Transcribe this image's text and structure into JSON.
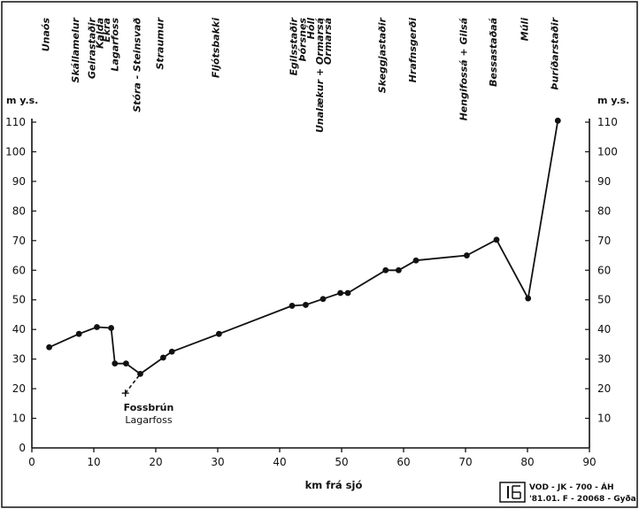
{
  "chart_data": {
    "type": "line",
    "title": "",
    "xlabel": "km frá sjó",
    "ylabel_left": "m y.s.",
    "ylabel_right": "m y.s.",
    "xlim": [
      0,
      90
    ],
    "ylim": [
      0,
      110
    ],
    "x_ticks": [
      0,
      10,
      20,
      30,
      40,
      50,
      60,
      70,
      80,
      90
    ],
    "y_ticks": [
      10,
      20,
      30,
      40,
      50,
      60,
      70,
      80,
      90,
      100,
      110
    ],
    "grid": false,
    "series": [
      {
        "values": [
          {
            "x": 2.8,
            "y": 34
          },
          {
            "x": 7.6,
            "y": 38.5
          },
          {
            "x": 10.5,
            "y": 40.8
          },
          {
            "x": 12.8,
            "y": 40.5
          },
          {
            "x": 13.4,
            "y": 28.5
          },
          {
            "x": 15.2,
            "y": 28.5
          },
          {
            "x": 17.5,
            "y": 25
          },
          {
            "x": 21.2,
            "y": 30.5
          },
          {
            "x": 22.6,
            "y": 32.5
          },
          {
            "x": 30.2,
            "y": 38.5
          },
          {
            "x": 42,
            "y": 48
          },
          {
            "x": 44.2,
            "y": 48.3
          },
          {
            "x": 47,
            "y": 50.3
          },
          {
            "x": 49.8,
            "y": 52.3
          },
          {
            "x": 51,
            "y": 52.3
          },
          {
            "x": 57.1,
            "y": 60
          },
          {
            "x": 59.2,
            "y": 60
          },
          {
            "x": 62,
            "y": 63.3
          },
          {
            "x": 70.2,
            "y": 65
          },
          {
            "x": 75,
            "y": 70.3
          },
          {
            "x": 80.1,
            "y": 50.5
          },
          {
            "x": 84.9,
            "y": 110.5
          }
        ]
      }
    ],
    "dashed_segment": [
      {
        "x": 15.1,
        "y": 18.5
      },
      {
        "x": 17.5,
        "y": 25
      }
    ],
    "annotation": {
      "line1": "Fossbrún",
      "line2": "Lagarfoss",
      "marker_x": 15.1,
      "marker_y": 18.5
    },
    "place_labels": [
      {
        "text": "Unaós",
        "x": 2.8
      },
      {
        "text": "Skállamelur",
        "x": 7.6
      },
      {
        "text": "Geirastaðir",
        "x": 10.2
      },
      {
        "text": "Kalda",
        "x": 11.5
      },
      {
        "text": "Ekra",
        "x": 12.6
      },
      {
        "text": "Lagarfoss",
        "x": 13.9
      },
      {
        "text": "Stóra - Steinsvað",
        "x": 17.5
      },
      {
        "text": "Straumur",
        "x": 21.2
      },
      {
        "text": "Fljótsbakki",
        "x": 30.2
      },
      {
        "text": "Egilsstaðir",
        "x": 42.8
      },
      {
        "text": "Þórsnes",
        "x": 44.2
      },
      {
        "text": "Hóll",
        "x": 45.6
      },
      {
        "text": "Unalækur + Ormarsá",
        "x": 47
      },
      {
        "text": "Ormarsá",
        "x": 48.3
      },
      {
        "text": "Skeggjastaðir",
        "x": 57.1
      },
      {
        "text": "Hrafnsgerði",
        "x": 62
      },
      {
        "text": "Hengifossá + Gilsá",
        "x": 70.2
      },
      {
        "text": "Bessastaðaá",
        "x": 75
      },
      {
        "text": "Múli",
        "x": 80.1
      },
      {
        "text": "Þuríðarstaðir",
        "x": 84.9
      }
    ]
  },
  "stamp": {
    "logo_text": "OS",
    "line1": "VOD - JK - 700 - ÁH",
    "line2": "'81.01. F - 20068 - Gyða"
  }
}
